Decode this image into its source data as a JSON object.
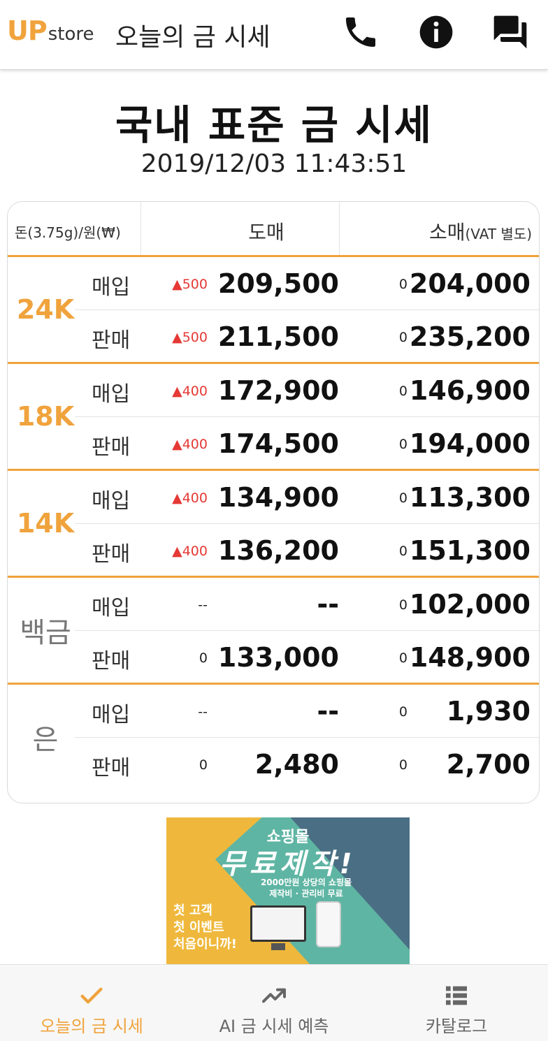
{
  "header": {
    "logo_up": "UP",
    "logo_store": "store",
    "title": "오늘의 금 시세",
    "icons": [
      "phone-icon",
      "info-icon",
      "chat-icon"
    ]
  },
  "main": {
    "title": "국내 표준 금 시세",
    "datetime": "2019/12/03 11:43:51"
  },
  "table": {
    "headers": {
      "unit": "돈(3.75g)/원(₩)",
      "wholesale": "도매",
      "retail": "소매",
      "retail_note": "(VAT 별도)"
    },
    "groups": [
      {
        "metal": "24K",
        "rows": [
          {
            "label": "매입",
            "wholesale_change": "▲500",
            "wholesale": "209,500",
            "retail_change": "0",
            "retail": "204,000"
          },
          {
            "label": "판매",
            "wholesale_change": "▲500",
            "wholesale": "211,500",
            "retail_change": "0",
            "retail": "235,200"
          }
        ]
      },
      {
        "metal": "18K",
        "rows": [
          {
            "label": "매입",
            "wholesale_change": "▲400",
            "wholesale": "172,900",
            "retail_change": "0",
            "retail": "146,900"
          },
          {
            "label": "판매",
            "wholesale_change": "▲400",
            "wholesale": "174,500",
            "retail_change": "0",
            "retail": "194,000"
          }
        ]
      },
      {
        "metal": "14K",
        "rows": [
          {
            "label": "매입",
            "wholesale_change": "▲400",
            "wholesale": "134,900",
            "retail_change": "0",
            "retail": "113,300"
          },
          {
            "label": "판매",
            "wholesale_change": "▲400",
            "wholesale": "136,200",
            "retail_change": "0",
            "retail": "151,300"
          }
        ]
      },
      {
        "metal": "백금",
        "rows": [
          {
            "label": "매입",
            "wholesale_change": "--",
            "wholesale": "--",
            "retail_change": "0",
            "retail": "102,000"
          },
          {
            "label": "판매",
            "wholesale_change": "0",
            "wholesale": "133,000",
            "retail_change": "0",
            "retail": "148,900"
          }
        ]
      },
      {
        "metal": "은",
        "rows": [
          {
            "label": "매입",
            "wholesale_change": "--",
            "wholesale": "--",
            "retail_change": "0",
            "retail": "1,930"
          },
          {
            "label": "판매",
            "wholesale_change": "0",
            "wholesale": "2,480",
            "retail_change": "0",
            "retail": "2,700"
          }
        ]
      }
    ]
  },
  "banner": {
    "top": "쇼핑몰",
    "big": "무료제작!",
    "sub1": "2000만원 상당의 쇼핑몰",
    "sub2": "제작비 · 관리비 무료",
    "left_line1": "첫 고객",
    "left_line2": "첫 이벤트",
    "left_line3": "처음이니까!"
  },
  "bottom_nav": [
    {
      "label": "오늘의 금 시세",
      "icon": "check-icon",
      "active": true
    },
    {
      "label": "AI 금 시세 예측",
      "icon": "trending-up-icon",
      "active": false
    },
    {
      "label": "카탈로그",
      "icon": "list-icon",
      "active": false
    }
  ],
  "colors": {
    "accent": "#f0a33c",
    "up": "#e53935",
    "banner_yellow": "#efb83c",
    "banner_blue": "#4a6f84",
    "banner_teal": "#5fb5a3"
  }
}
